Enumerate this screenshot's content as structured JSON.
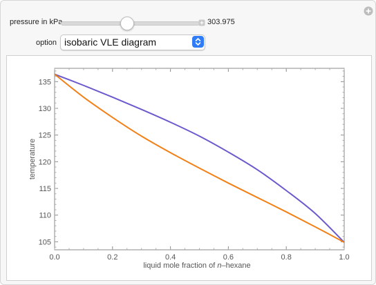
{
  "controls": {
    "pressure_label": "pressure in kPa",
    "pressure_value": "303.975",
    "pressure_slider_fraction": 0.48,
    "option_label": "option",
    "option_selected": "isobaric VLE diagram"
  },
  "chart_data": {
    "type": "line",
    "xlabel_prefix": "liquid mole fraction of ",
    "xlabel_italic": "n",
    "xlabel_suffix": "–hexane",
    "ylabel": "temperature",
    "xlim": [
      0,
      1
    ],
    "ylim": [
      103.5,
      137.5
    ],
    "x_ticks": [
      0,
      0.2,
      0.4,
      0.6,
      0.8,
      1
    ],
    "x_tick_labels": [
      "0.0",
      "0.2",
      "0.4",
      "0.6",
      "0.8",
      "1.0"
    ],
    "y_ticks": [
      105,
      110,
      115,
      120,
      125,
      130,
      135
    ],
    "y_tick_labels": [
      "105",
      "110",
      "115",
      "120",
      "125",
      "130",
      "135"
    ],
    "series": [
      {
        "color": "#6a5acd",
        "x": [
          0,
          0.1,
          0.2,
          0.3,
          0.4,
          0.5,
          0.6,
          0.7,
          0.8,
          0.9,
          1.0
        ],
        "y": [
          136.4,
          134.3,
          132.1,
          129.8,
          127.4,
          124.8,
          121.8,
          118.5,
          114.6,
          110.3,
          104.9
        ]
      },
      {
        "color": "#f28016",
        "x": [
          0,
          0.1,
          0.2,
          0.3,
          0.4,
          0.5,
          0.6,
          0.7,
          0.8,
          0.9,
          1.0
        ],
        "y": [
          136.4,
          132.1,
          128.3,
          124.8,
          121.7,
          118.8,
          116.0,
          113.3,
          110.6,
          107.8,
          104.9
        ]
      }
    ]
  }
}
